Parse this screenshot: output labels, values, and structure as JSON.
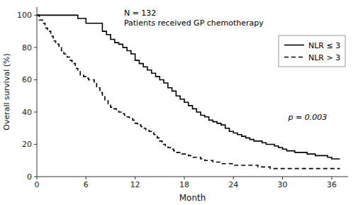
{
  "chart_data": {
    "type": "step",
    "annotations": [
      "N = 132",
      "Patients received GP chemotherapy",
      "p = 0.003"
    ],
    "x_label": "Month",
    "y_label": "Overall survival (%)",
    "xlim": [
      0,
      38
    ],
    "ylim": [
      0,
      105
    ],
    "xticks": [
      0,
      6,
      12,
      18,
      24,
      30,
      36
    ],
    "yticks": [
      0,
      20,
      40,
      60,
      80,
      100
    ],
    "legend": "upper right",
    "series": [
      {
        "name": "NLR ≤ 3",
        "color": "#000000",
        "line_style": "solid",
        "x": [
          0,
          0.5,
          1,
          1.5,
          2,
          2.5,
          3,
          3.5,
          4,
          4.5,
          5,
          5.5,
          6,
          6.5,
          7,
          7.5,
          8,
          8.5,
          9,
          9.5,
          10,
          10.5,
          11,
          11.5,
          12,
          12.5,
          13,
          13.5,
          14,
          14.5,
          15,
          15.5,
          16,
          16.5,
          17,
          17.5,
          18,
          18.5,
          19,
          19.5,
          20,
          20.5,
          21,
          21.5,
          22,
          22.5,
          23,
          23.5,
          24,
          24.5,
          25,
          25.5,
          26,
          26.5,
          27,
          27.5,
          28,
          28.5,
          29,
          29.5,
          30,
          30.5,
          31,
          31.5,
          32,
          32.5,
          33,
          33.5,
          34,
          34.5,
          35,
          35.5,
          36,
          36.5,
          37
        ],
        "values": [
          100,
          100,
          100,
          100,
          100,
          100,
          100,
          100,
          100,
          100,
          98,
          98,
          95,
          95,
          95,
          95,
          90,
          88,
          85,
          83,
          82,
          80,
          78,
          76,
          72,
          70,
          68,
          66,
          64,
          62,
          60,
          58,
          55,
          53,
          50,
          48,
          46,
          44,
          42,
          40,
          38,
          37,
          35,
          34,
          33,
          32,
          30,
          28,
          27,
          26,
          25,
          24,
          23,
          22,
          22,
          21,
          20,
          20,
          19,
          18,
          17,
          16,
          16,
          15,
          15,
          15,
          14,
          14,
          13,
          13,
          13,
          12,
          11,
          11,
          11
        ]
      },
      {
        "name": "NLR > 3",
        "color": "#000000",
        "line_style": "dashed",
        "x": [
          0,
          0.3,
          0.7,
          1,
          1.3,
          1.7,
          2,
          2.3,
          2.7,
          3,
          3.3,
          3.7,
          4,
          4.3,
          4.7,
          5,
          5.3,
          5.7,
          6,
          6.3,
          6.7,
          7,
          7.3,
          7.7,
          8,
          8.3,
          8.7,
          9,
          9.3,
          9.7,
          10,
          10.3,
          10.7,
          11,
          11.3,
          11.7,
          12,
          12.3,
          12.7,
          13,
          13.3,
          13.7,
          14,
          14.3,
          14.7,
          15,
          15.3,
          15.7,
          16,
          16.3,
          16.7,
          17,
          17.3,
          17.7,
          18,
          18.5,
          19,
          19.5,
          20,
          20.5,
          21,
          21.5,
          22,
          22.5,
          23,
          23.5,
          24,
          24.5,
          25,
          25.5,
          26,
          26.5,
          27,
          27.5,
          28,
          28.5,
          29,
          29.5,
          30,
          30.5,
          31,
          31.5,
          32,
          32.5,
          33,
          33.5,
          34,
          34.5,
          35,
          35.5,
          36,
          36.5,
          37
        ],
        "values": [
          100,
          97,
          95,
          92,
          90,
          87,
          84,
          82,
          80,
          78,
          76,
          74,
          72,
          70,
          67,
          65,
          63,
          62,
          61,
          60,
          60,
          58,
          55,
          52,
          50,
          47,
          45,
          43,
          42,
          41,
          40,
          39,
          38,
          37,
          36,
          35,
          33,
          32,
          31,
          30,
          29,
          28,
          27,
          26,
          24,
          22,
          20,
          19,
          18,
          17,
          16,
          15,
          15,
          14,
          14,
          13,
          12,
          12,
          11,
          10,
          10,
          9,
          9,
          8,
          8,
          8,
          7,
          7,
          7,
          7,
          7,
          7,
          6,
          6,
          6,
          5,
          5,
          5,
          5,
          5,
          5,
          5,
          5,
          5,
          5,
          5,
          5,
          5,
          5,
          5,
          5,
          5,
          5
        ]
      }
    ]
  }
}
